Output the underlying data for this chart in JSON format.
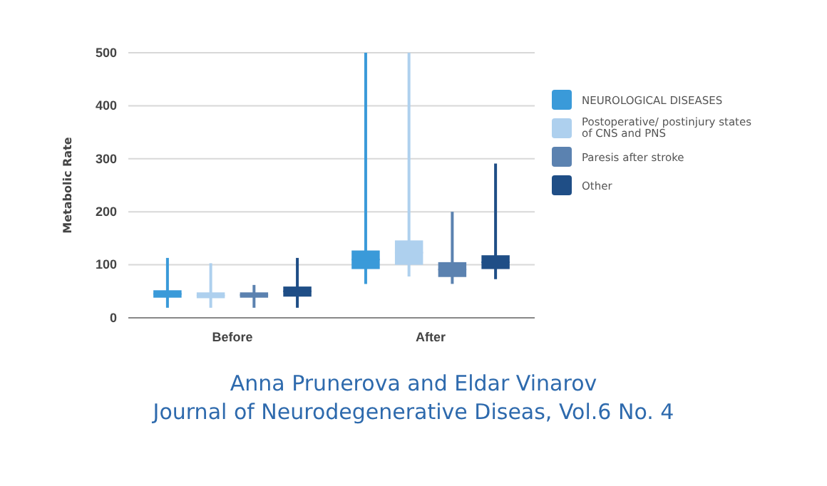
{
  "chart_data": {
    "type": "box",
    "categories": [
      "Before",
      "After"
    ],
    "ylabel": "Metabolic Rate",
    "ylim": [
      0,
      500
    ],
    "yticks": [
      0,
      100,
      200,
      300,
      400,
      500
    ],
    "grid": "y",
    "legend": "right",
    "series": [
      {
        "name": "NEUROLOGICAL DISEASES",
        "color": "#3a9ad9",
        "boxes": [
          {
            "low": 19,
            "q1": 38,
            "median": 45,
            "q3": 52,
            "high": 113
          },
          {
            "low": 64,
            "q1": 92,
            "median": 110,
            "q3": 127,
            "high": 500
          }
        ]
      },
      {
        "name": "Postoperative/ postinjury states of CNS and PNS",
        "color": "#aed0ee",
        "boxes": [
          {
            "low": 19,
            "q1": 37,
            "median": 42,
            "q3": 48,
            "high": 103
          },
          {
            "low": 78,
            "q1": 100,
            "median": 123,
            "q3": 146,
            "high": 500
          }
        ]
      },
      {
        "name": "Paresis after stroke",
        "color": "#5b82b0",
        "boxes": [
          {
            "low": 19,
            "q1": 38,
            "median": 43,
            "q3": 48,
            "high": 62
          },
          {
            "low": 64,
            "q1": 77,
            "median": 91,
            "q3": 105,
            "high": 200
          }
        ]
      },
      {
        "name": "Other",
        "color": "#1f4e86",
        "boxes": [
          {
            "low": 19,
            "q1": 40,
            "median": 50,
            "q3": 59,
            "high": 113
          },
          {
            "low": 73,
            "q1": 92,
            "median": 105,
            "q3": 118,
            "high": 291
          }
        ]
      }
    ],
    "annotations": [
      "Anna Prunerova and Eldar Vinarov",
      "Journal of Neurodegenerative Diseas, Vol.6 No. 4"
    ]
  }
}
